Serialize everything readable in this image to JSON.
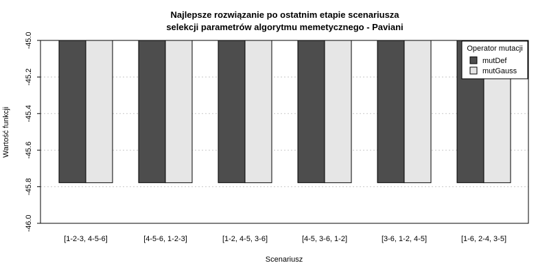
{
  "chart_data": {
    "type": "bar",
    "title_lines": [
      "Najlepsze rozwiązanie po ostatnim etapie scenariusza",
      "selekcji parametrów algorytmu memetycznego - Paviani"
    ],
    "xlabel": "Scenariusz",
    "ylabel": "Wartość funkcji",
    "categories": [
      "[1-2-3, 4-5-6]",
      "[4-5-6, 1-2-3]",
      "[1-2, 4-5, 3-6]",
      "[4-5, 3-6, 1-2]",
      "[3-6, 1-2, 4-5]",
      "[1-6, 2-4, 3-5]"
    ],
    "series": [
      {
        "name": "mutDef",
        "color": "#4d4d4d",
        "values": [
          -45.778,
          -45.778,
          -45.778,
          -45.778,
          -45.778,
          -45.778
        ]
      },
      {
        "name": "mutGauss",
        "color": "#e6e6e6",
        "values": [
          -45.778,
          -45.778,
          -45.778,
          -45.778,
          -45.778,
          -45.778
        ]
      }
    ],
    "ylim": [
      -46.0,
      -45.0
    ],
    "yticks": [
      -45.0,
      -45.2,
      -45.4,
      -45.6,
      -45.8,
      -46.0
    ],
    "ytick_labels": [
      "-45.0",
      "-45.2",
      "-45.4",
      "-45.6",
      "-45.8",
      "-46.0"
    ],
    "y_reversed": true,
    "grid": "horizontal-dotted",
    "legend": {
      "title": "Operator mutacji",
      "placement": "top-right"
    }
  }
}
